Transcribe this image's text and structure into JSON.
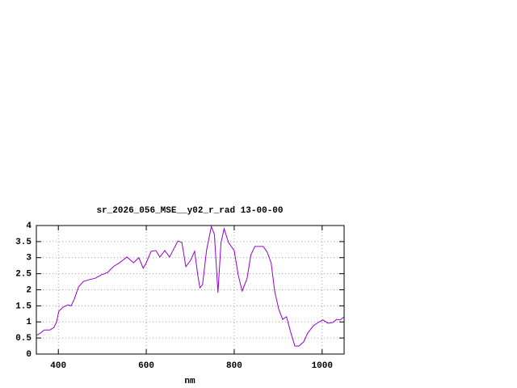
{
  "chart_data": {
    "type": "line",
    "title": "sr_2026_056_MSE__y02_r_rad 13-00-00",
    "x_label": "nm",
    "x": [
      350,
      359,
      368,
      381,
      390,
      396,
      401,
      411,
      422,
      429,
      436,
      446,
      457,
      469,
      484,
      497,
      512,
      525,
      539,
      556,
      571,
      583,
      593,
      600,
      611,
      622,
      631,
      642,
      653,
      672,
      681,
      690,
      701,
      710,
      717,
      722,
      728,
      737,
      748,
      755,
      763,
      770,
      777,
      787,
      800,
      809,
      818,
      829,
      838,
      847,
      857,
      866,
      875,
      884,
      892,
      901,
      910,
      919,
      928,
      938,
      947,
      958,
      967,
      980,
      993,
      1002,
      1013,
      1024,
      1033,
      1041,
      1050
    ],
    "series": [
      {
        "color": "#9400d3",
        "values": [
          0.58,
          0.65,
          0.75,
          0.75,
          0.83,
          1.0,
          1.33,
          1.46,
          1.53,
          1.5,
          1.7,
          2.09,
          2.26,
          2.31,
          2.36,
          2.46,
          2.54,
          2.72,
          2.84,
          3.02,
          2.84,
          3.0,
          2.67,
          2.84,
          3.2,
          3.22,
          3.02,
          3.22,
          3.02,
          3.52,
          3.47,
          2.72,
          2.92,
          3.2,
          2.47,
          2.06,
          2.16,
          3.22,
          3.97,
          3.72,
          1.91,
          3.47,
          3.9,
          3.47,
          3.22,
          2.47,
          1.96,
          2.34,
          3.09,
          3.35,
          3.35,
          3.35,
          3.17,
          2.84,
          1.96,
          1.41,
          1.08,
          1.16,
          0.7,
          0.25,
          0.25,
          0.38,
          0.65,
          0.88,
          1.0,
          1.06,
          0.96,
          0.98,
          1.08,
          1.06,
          1.16
        ]
      }
    ],
    "xlim": [
      350,
      1050
    ],
    "xticks": [
      400,
      600,
      800,
      1000
    ],
    "ylim": [
      0,
      4
    ],
    "yticks": [
      0,
      0.5,
      1,
      1.5,
      2,
      2.5,
      3,
      3.5,
      4
    ],
    "grid": true
  }
}
